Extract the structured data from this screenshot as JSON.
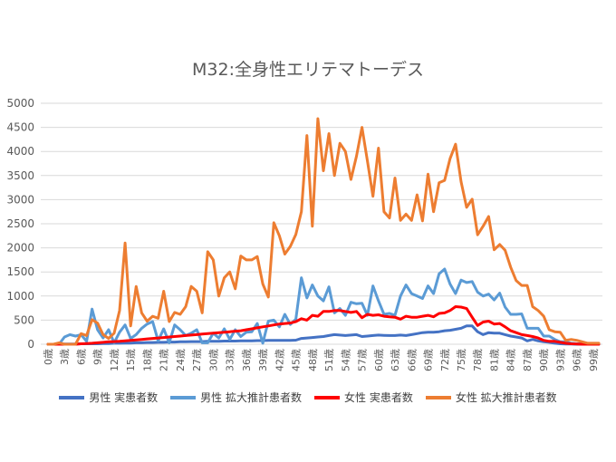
{
  "chart_data": {
    "type": "line",
    "title": "M32:全身性エリテマトーデス",
    "xlabel": "",
    "ylabel": "",
    "ylim": [
      0,
      5000
    ],
    "yticks": [
      0,
      500,
      1000,
      1500,
      2000,
      2500,
      3000,
      3500,
      4000,
      4500,
      5000
    ],
    "grid": true,
    "legend_position": "bottom",
    "x_tick_labels": [
      "0歳",
      "3歳",
      "6歳",
      "9歳",
      "12歳",
      "15歳",
      "18歳",
      "21歳",
      "24歳",
      "27歳",
      "30歳",
      "33歳",
      "36歳",
      "39歳",
      "42歳",
      "45歳",
      "48歳",
      "51歳",
      "54歳",
      "57歳",
      "60歳",
      "63歳",
      "66歳",
      "69歳",
      "72歳",
      "75歳",
      "78歳",
      "81歳",
      "84歳",
      "87歳",
      "90歳",
      "93歳",
      "96歳",
      "99歳"
    ],
    "x_start_age": 0,
    "series": [
      {
        "name": "男性 実患者数",
        "color": "#4472C4",
        "values": [
          0,
          0,
          0,
          5,
          5,
          5,
          10,
          10,
          10,
          10,
          15,
          15,
          20,
          20,
          25,
          25,
          30,
          30,
          35,
          35,
          40,
          40,
          45,
          45,
          50,
          50,
          55,
          55,
          55,
          60,
          60,
          60,
          65,
          65,
          65,
          70,
          70,
          70,
          75,
          75,
          80,
          80,
          80,
          80,
          80,
          85,
          120,
          130,
          140,
          150,
          160,
          180,
          200,
          190,
          180,
          190,
          200,
          160,
          170,
          180,
          190,
          185,
          180,
          180,
          190,
          180,
          200,
          220,
          240,
          250,
          250,
          260,
          280,
          290,
          310,
          330,
          380,
          380,
          260,
          200,
          240,
          230,
          230,
          200,
          170,
          150,
          130,
          70,
          100,
          70,
          50,
          40,
          20,
          10,
          5,
          5,
          0,
          0,
          0,
          0,
          0
        ]
      },
      {
        "name": "男性 拡大推計患者数",
        "color": "#5B9BD5",
        "values": [
          0,
          0,
          0,
          150,
          200,
          170,
          200,
          60,
          730,
          300,
          130,
          300,
          30,
          250,
          400,
          120,
          200,
          330,
          420,
          470,
          70,
          320,
          30,
          400,
          300,
          180,
          230,
          300,
          30,
          30,
          230,
          130,
          320,
          100,
          300,
          160,
          250,
          260,
          430,
          20,
          480,
          500,
          360,
          620,
          410,
          520,
          1380,
          960,
          1230,
          1000,
          900,
          1190,
          650,
          740,
          600,
          870,
          840,
          850,
          600,
          1210,
          900,
          620,
          640,
          600,
          1000,
          1230,
          1050,
          1000,
          950,
          1210,
          1050,
          1460,
          1560,
          1250,
          1050,
          1330,
          1280,
          1300,
          1080,
          1000,
          1040,
          920,
          1060,
          770,
          620,
          620,
          630,
          330,
          330,
          330,
          170,
          170,
          100,
          50,
          50,
          20,
          10,
          10,
          5,
          5,
          5
        ]
      },
      {
        "name": "女性 実患者数",
        "color": "#FF0000",
        "values": [
          0,
          0,
          0,
          0,
          0,
          0,
          10,
          15,
          20,
          30,
          40,
          50,
          55,
          60,
          70,
          80,
          90,
          100,
          110,
          120,
          130,
          140,
          150,
          160,
          170,
          180,
          190,
          200,
          210,
          220,
          230,
          240,
          250,
          260,
          270,
          280,
          300,
          320,
          340,
          360,
          380,
          400,
          420,
          430,
          440,
          470,
          530,
          500,
          600,
          580,
          680,
          680,
          700,
          700,
          680,
          660,
          680,
          550,
          620,
          600,
          610,
          580,
          570,
          560,
          520,
          580,
          560,
          560,
          580,
          600,
          570,
          640,
          650,
          700,
          780,
          770,
          740,
          560,
          390,
          460,
          480,
          420,
          430,
          360,
          280,
          240,
          200,
          180,
          160,
          130,
          80,
          60,
          60,
          40,
          20,
          10,
          5,
          0,
          0,
          0,
          0
        ]
      },
      {
        "name": "女性 拡大推計患者数",
        "color": "#ED7D31",
        "values": [
          0,
          0,
          30,
          0,
          0,
          0,
          220,
          180,
          510,
          440,
          200,
          120,
          230,
          700,
          2100,
          380,
          1200,
          650,
          480,
          580,
          540,
          1100,
          470,
          660,
          620,
          780,
          1200,
          1100,
          650,
          1920,
          1750,
          1000,
          1380,
          1500,
          1150,
          1830,
          1750,
          1750,
          1820,
          1250,
          980,
          2520,
          2250,
          1870,
          2030,
          2280,
          2750,
          4330,
          2450,
          4680,
          3600,
          4370,
          3500,
          4170,
          4000,
          3420,
          3900,
          4500,
          3800,
          3070,
          4070,
          2750,
          2620,
          3450,
          2570,
          2700,
          2570,
          3100,
          2560,
          3530,
          2750,
          3350,
          3400,
          3850,
          4150,
          3370,
          2840,
          3010,
          2270,
          2450,
          2650,
          1960,
          2070,
          1950,
          1600,
          1320,
          1220,
          1220,
          780,
          700,
          580,
          300,
          260,
          250,
          80,
          100,
          80,
          50,
          20,
          20,
          20
        ]
      }
    ]
  }
}
